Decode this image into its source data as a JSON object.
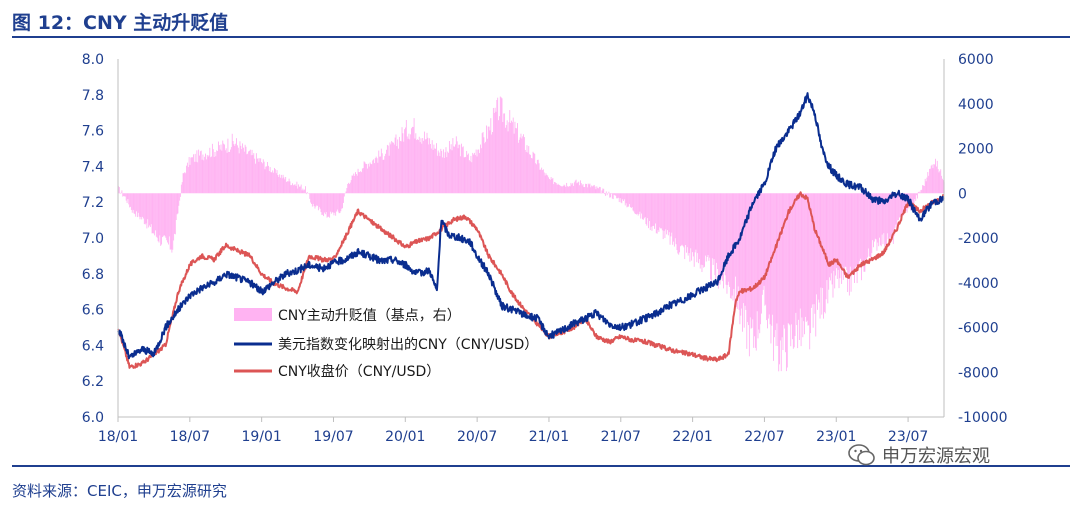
{
  "header": {
    "title": "图 12：CNY 主动升贬值"
  },
  "footer": {
    "source": "资料来源：CEIC，申万宏源研究"
  },
  "watermark": {
    "brand": "申万宏源宏观",
    "icon": "wechat-icon"
  },
  "colors": {
    "title": "#1f3f8f",
    "bar": "#ffb3f2",
    "dollar_line": "#0a2d8f",
    "close_line": "#dc5555"
  },
  "chart_data": {
    "type": "line+bar",
    "title": "CNY 主动升贬值",
    "x_ticks": [
      "18/01",
      "18/07",
      "19/01",
      "19/07",
      "20/01",
      "20/07",
      "21/01",
      "21/07",
      "22/01",
      "22/07",
      "23/01",
      "23/07"
    ],
    "x_range": [
      2018.0,
      2023.75
    ],
    "y_left": {
      "range": [
        6.0,
        8.0
      ],
      "ticks": [
        "8.0",
        "7.8",
        "7.6",
        "7.4",
        "7.2",
        "7.0",
        "6.8",
        "6.6",
        "6.4",
        "6.2",
        "6.0"
      ]
    },
    "y_right": {
      "range": [
        -10000,
        6000
      ],
      "ticks": [
        "6000",
        "4000",
        "2000",
        "0",
        "-2000",
        "-4000",
        "-6000",
        "-8000",
        "-10000"
      ]
    },
    "legend": [
      "CNY主动升贬值（基点，右）",
      "美元指数变化映射出的CNY（CNY/USD）",
      "CNY收盘价（CNY/USD）"
    ],
    "series": [
      {
        "name": "CNY主动升贬值（基点，右）",
        "kind": "bar",
        "axis": "right",
        "points": [
          [
            2018.0,
            200
          ],
          [
            2018.05,
            -200
          ],
          [
            2018.1,
            -800
          ],
          [
            2018.18,
            -1200
          ],
          [
            2018.25,
            -1800
          ],
          [
            2018.32,
            -2200
          ],
          [
            2018.38,
            -2400
          ],
          [
            2018.45,
            800
          ],
          [
            2018.5,
            1500
          ],
          [
            2018.6,
            1800
          ],
          [
            2018.7,
            2000
          ],
          [
            2018.8,
            2300
          ],
          [
            2018.9,
            1800
          ],
          [
            2019.0,
            1400
          ],
          [
            2019.1,
            900
          ],
          [
            2019.2,
            500
          ],
          [
            2019.3,
            200
          ],
          [
            2019.35,
            -500
          ],
          [
            2019.45,
            -1000
          ],
          [
            2019.55,
            -800
          ],
          [
            2019.6,
            500
          ],
          [
            2019.7,
            1200
          ],
          [
            2019.8,
            1600
          ],
          [
            2019.9,
            2000
          ],
          [
            2020.0,
            2800
          ],
          [
            2020.05,
            3000
          ],
          [
            2020.15,
            2400
          ],
          [
            2020.25,
            1800
          ],
          [
            2020.35,
            2200
          ],
          [
            2020.45,
            1500
          ],
          [
            2020.55,
            2500
          ],
          [
            2020.65,
            3800
          ],
          [
            2020.7,
            3400
          ],
          [
            2020.8,
            2500
          ],
          [
            2020.9,
            1500
          ],
          [
            2021.0,
            600
          ],
          [
            2021.1,
            400
          ],
          [
            2021.2,
            500
          ],
          [
            2021.3,
            300
          ],
          [
            2021.4,
            0
          ],
          [
            2021.5,
            -300
          ],
          [
            2021.6,
            -800
          ],
          [
            2021.7,
            -1400
          ],
          [
            2021.8,
            -1800
          ],
          [
            2021.9,
            -2400
          ],
          [
            2022.0,
            -2800
          ],
          [
            2022.1,
            -3300
          ],
          [
            2022.2,
            -3800
          ],
          [
            2022.3,
            -4500
          ],
          [
            2022.35,
            -5800
          ],
          [
            2022.42,
            -6500
          ],
          [
            2022.5,
            -4800
          ],
          [
            2022.58,
            -7000
          ],
          [
            2022.65,
            -6800
          ],
          [
            2022.72,
            -6000
          ],
          [
            2022.8,
            -6500
          ],
          [
            2022.88,
            -5000
          ],
          [
            2022.95,
            -4500
          ],
          [
            2023.0,
            -3800
          ],
          [
            2023.08,
            -4000
          ],
          [
            2023.15,
            -3600
          ],
          [
            2023.22,
            -2800
          ],
          [
            2023.3,
            -2000
          ],
          [
            2023.38,
            -2200
          ],
          [
            2023.45,
            -1000
          ],
          [
            2023.52,
            -600
          ],
          [
            2023.6,
            300
          ],
          [
            2023.68,
            1500
          ],
          [
            2023.75,
            600
          ]
        ]
      },
      {
        "name": "美元指数变化映射出的CNY（CNY/USD）",
        "kind": "line",
        "axis": "left",
        "points": [
          [
            2018.0,
            6.5
          ],
          [
            2018.08,
            6.33
          ],
          [
            2018.17,
            6.38
          ],
          [
            2018.25,
            6.35
          ],
          [
            2018.33,
            6.5
          ],
          [
            2018.42,
            6.6
          ],
          [
            2018.5,
            6.68
          ],
          [
            2018.58,
            6.72
          ],
          [
            2018.67,
            6.75
          ],
          [
            2018.75,
            6.8
          ],
          [
            2018.83,
            6.78
          ],
          [
            2018.92,
            6.75
          ],
          [
            2019.0,
            6.7
          ],
          [
            2019.08,
            6.75
          ],
          [
            2019.17,
            6.8
          ],
          [
            2019.25,
            6.82
          ],
          [
            2019.33,
            6.85
          ],
          [
            2019.42,
            6.83
          ],
          [
            2019.5,
            6.86
          ],
          [
            2019.58,
            6.88
          ],
          [
            2019.67,
            6.92
          ],
          [
            2019.75,
            6.9
          ],
          [
            2019.83,
            6.87
          ],
          [
            2019.92,
            6.88
          ],
          [
            2020.0,
            6.85
          ],
          [
            2020.08,
            6.8
          ],
          [
            2020.17,
            6.82
          ],
          [
            2020.22,
            6.7
          ],
          [
            2020.25,
            7.1
          ],
          [
            2020.3,
            7.02
          ],
          [
            2020.38,
            7.0
          ],
          [
            2020.45,
            6.98
          ],
          [
            2020.5,
            6.9
          ],
          [
            2020.58,
            6.8
          ],
          [
            2020.67,
            6.62
          ],
          [
            2020.75,
            6.6
          ],
          [
            2020.83,
            6.57
          ],
          [
            2020.92,
            6.55
          ],
          [
            2021.0,
            6.45
          ],
          [
            2021.08,
            6.48
          ],
          [
            2021.17,
            6.52
          ],
          [
            2021.25,
            6.55
          ],
          [
            2021.33,
            6.58
          ],
          [
            2021.42,
            6.52
          ],
          [
            2021.5,
            6.5
          ],
          [
            2021.58,
            6.52
          ],
          [
            2021.67,
            6.55
          ],
          [
            2021.75,
            6.58
          ],
          [
            2021.83,
            6.62
          ],
          [
            2021.92,
            6.65
          ],
          [
            2022.0,
            6.68
          ],
          [
            2022.08,
            6.72
          ],
          [
            2022.17,
            6.75
          ],
          [
            2022.25,
            6.9
          ],
          [
            2022.33,
            7.0
          ],
          [
            2022.42,
            7.2
          ],
          [
            2022.5,
            7.3
          ],
          [
            2022.58,
            7.5
          ],
          [
            2022.67,
            7.6
          ],
          [
            2022.75,
            7.7
          ],
          [
            2022.8,
            7.8
          ],
          [
            2022.85,
            7.7
          ],
          [
            2022.9,
            7.5
          ],
          [
            2022.95,
            7.4
          ],
          [
            2023.0,
            7.35
          ],
          [
            2023.08,
            7.3
          ],
          [
            2023.17,
            7.28
          ],
          [
            2023.25,
            7.22
          ],
          [
            2023.33,
            7.2
          ],
          [
            2023.42,
            7.25
          ],
          [
            2023.5,
            7.22
          ],
          [
            2023.58,
            7.1
          ],
          [
            2023.67,
            7.2
          ],
          [
            2023.75,
            7.22
          ]
        ]
      },
      {
        "name": "CNY收盘价（CNY/USD）",
        "kind": "line",
        "axis": "left",
        "points": [
          [
            2018.0,
            6.5
          ],
          [
            2018.08,
            6.28
          ],
          [
            2018.17,
            6.3
          ],
          [
            2018.25,
            6.35
          ],
          [
            2018.33,
            6.4
          ],
          [
            2018.42,
            6.7
          ],
          [
            2018.5,
            6.85
          ],
          [
            2018.58,
            6.9
          ],
          [
            2018.67,
            6.88
          ],
          [
            2018.75,
            6.96
          ],
          [
            2018.83,
            6.93
          ],
          [
            2018.92,
            6.9
          ],
          [
            2019.0,
            6.8
          ],
          [
            2019.08,
            6.75
          ],
          [
            2019.17,
            6.72
          ],
          [
            2019.25,
            6.7
          ],
          [
            2019.33,
            6.9
          ],
          [
            2019.42,
            6.88
          ],
          [
            2019.5,
            6.88
          ],
          [
            2019.58,
            7.0
          ],
          [
            2019.67,
            7.15
          ],
          [
            2019.75,
            7.1
          ],
          [
            2019.83,
            7.05
          ],
          [
            2019.92,
            7.0
          ],
          [
            2020.0,
            6.95
          ],
          [
            2020.08,
            6.98
          ],
          [
            2020.17,
            7.0
          ],
          [
            2020.25,
            7.05
          ],
          [
            2020.33,
            7.1
          ],
          [
            2020.42,
            7.12
          ],
          [
            2020.5,
            7.05
          ],
          [
            2020.58,
            6.9
          ],
          [
            2020.67,
            6.8
          ],
          [
            2020.75,
            6.68
          ],
          [
            2020.83,
            6.6
          ],
          [
            2020.92,
            6.52
          ],
          [
            2021.0,
            6.45
          ],
          [
            2021.08,
            6.47
          ],
          [
            2021.17,
            6.5
          ],
          [
            2021.25,
            6.55
          ],
          [
            2021.33,
            6.45
          ],
          [
            2021.42,
            6.42
          ],
          [
            2021.5,
            6.45
          ],
          [
            2021.58,
            6.43
          ],
          [
            2021.67,
            6.42
          ],
          [
            2021.75,
            6.4
          ],
          [
            2021.83,
            6.38
          ],
          [
            2021.92,
            6.36
          ],
          [
            2022.0,
            6.35
          ],
          [
            2022.08,
            6.33
          ],
          [
            2022.17,
            6.32
          ],
          [
            2022.25,
            6.35
          ],
          [
            2022.3,
            6.65
          ],
          [
            2022.33,
            6.7
          ],
          [
            2022.42,
            6.72
          ],
          [
            2022.5,
            6.78
          ],
          [
            2022.58,
            6.95
          ],
          [
            2022.67,
            7.15
          ],
          [
            2022.75,
            7.25
          ],
          [
            2022.8,
            7.22
          ],
          [
            2022.85,
            7.05
          ],
          [
            2022.9,
            6.95
          ],
          [
            2022.95,
            6.85
          ],
          [
            2023.0,
            6.88
          ],
          [
            2023.08,
            6.78
          ],
          [
            2023.17,
            6.85
          ],
          [
            2023.25,
            6.88
          ],
          [
            2023.33,
            6.92
          ],
          [
            2023.42,
            7.05
          ],
          [
            2023.5,
            7.2
          ],
          [
            2023.58,
            7.15
          ],
          [
            2023.67,
            7.2
          ],
          [
            2023.75,
            7.23
          ]
        ]
      }
    ]
  }
}
